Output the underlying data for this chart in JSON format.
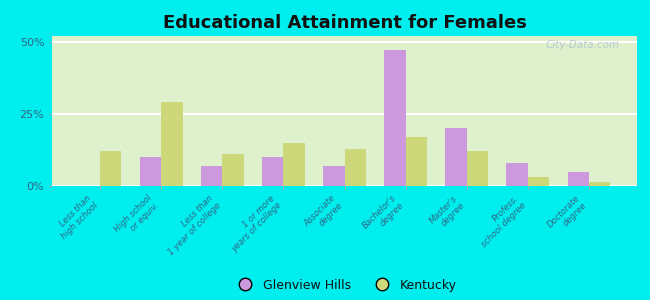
{
  "title": "Educational Attainment for Females",
  "categories": [
    "Less than\nhigh school",
    "High school\nor equiv.",
    "Less than\n1 year of college",
    "1 or more\nyears of college",
    "Associate\ndegree",
    "Bachelor's\ndegree",
    "Master's\ndegree",
    "Profess.\nschool degree",
    "Doctorate\ndegree"
  ],
  "glenview_hills": [
    0.0,
    10.0,
    7.0,
    10.0,
    7.0,
    47.0,
    20.0,
    8.0,
    5.0
  ],
  "kentucky": [
    12.0,
    29.0,
    11.0,
    15.0,
    13.0,
    17.0,
    12.0,
    3.0,
    1.5
  ],
  "glenview_color": "#cc99dd",
  "kentucky_color": "#ccd87a",
  "background_color": "#00eeee",
  "plot_bg_top": "#e8f5d8",
  "plot_bg_bottom": "#f5fded",
  "bar_width": 0.35,
  "ylim": [
    0,
    52
  ],
  "yticks": [
    0,
    25,
    50
  ],
  "ytick_labels": [
    "0%",
    "25%",
    "50%"
  ],
  "watermark": "City-Data.com",
  "legend_glenview": "Glenview Hills",
  "legend_kentucky": "Kentucky"
}
